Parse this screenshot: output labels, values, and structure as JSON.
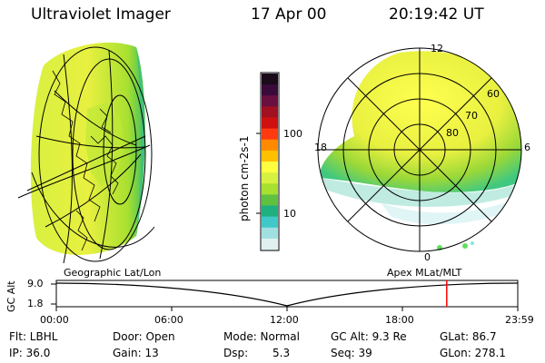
{
  "header": {
    "instrument": "Ultraviolet Imager",
    "date": "17 Apr 00",
    "time": "20:19:42 UT"
  },
  "colorbar": {
    "unit_label": "photon cm-2s-1",
    "ticks": [
      "100",
      "10"
    ],
    "colors_top_to_bottom": [
      "#1a0a1a",
      "#3a0a3a",
      "#6a1040",
      "#a01020",
      "#d01010",
      "#ff3a10",
      "#ff8a00",
      "#ffc000",
      "#ffff40",
      "#d8f040",
      "#a8e030",
      "#60c040",
      "#20b080",
      "#40c8c8",
      "#a0e0e0",
      "#e0f0f0"
    ]
  },
  "geo_plot": {
    "label": "Geographic Lat/Lon"
  },
  "polar_plot": {
    "label": "Apex MLat/MLT",
    "mlt_labels": {
      "top": "12",
      "left": "18",
      "right": "6",
      "bottom": "0"
    },
    "lat_labels": [
      "60",
      "70",
      "80"
    ]
  },
  "altitude_chart": {
    "ylabel": "GC Alt",
    "y_ticks": [
      "9.0",
      "1.8"
    ],
    "x_ticks": [
      "00:00",
      "06:00",
      "12:00",
      "18:00",
      "23:59"
    ],
    "current_time_marker_color": "#ff0000",
    "current_time_fraction": 0.846
  },
  "info": {
    "filter": "Flt: LBHL",
    "ip": "IP: 36.0",
    "door": "Door: Open",
    "gain": "Gain: 13",
    "mode": "Mode: Normal",
    "dsp_label": "Dsp:",
    "dsp_value": "5.3",
    "gc_alt": "GC Alt: 9.3 Re",
    "seq": "Seq: 39",
    "glat": "GLat: 86.7",
    "glon": "GLon: 278.1"
  }
}
